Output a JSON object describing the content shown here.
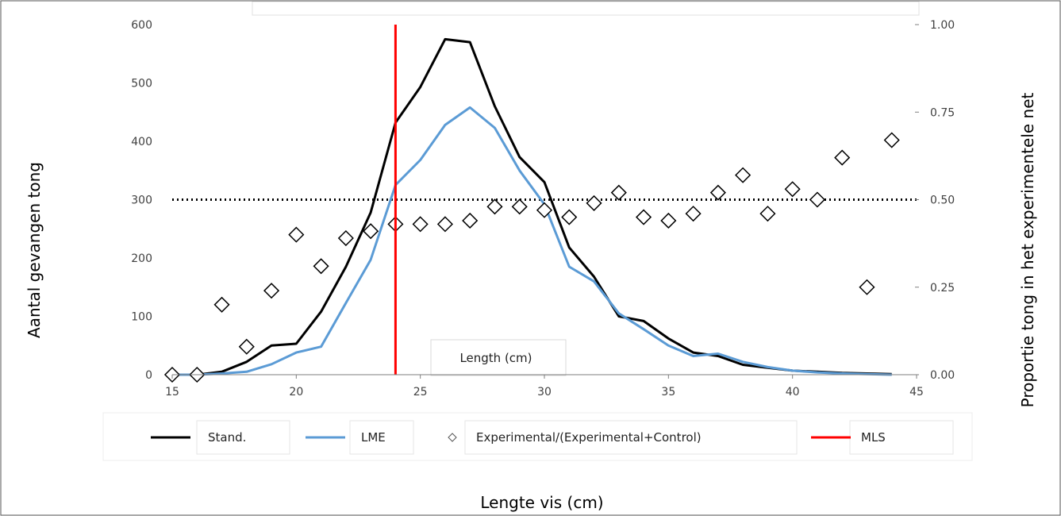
{
  "chart_data": {
    "type": "line",
    "xlabel": "Lengte vis (cm)",
    "ylabel": "Aantal gevangen tong",
    "y2label": "Proportie tong in het experimentele net",
    "inner_xlabel": "Length (cm)",
    "xlim": [
      15,
      45
    ],
    "ylim": [
      0,
      600
    ],
    "y2lim": [
      0,
      1
    ],
    "x_ticks": [
      "15",
      "20",
      "25",
      "30",
      "35",
      "40",
      "45"
    ],
    "y_ticks": [
      "0",
      "100",
      "200",
      "300",
      "400",
      "500",
      "600"
    ],
    "y2_ticks": [
      "0.00",
      "0.25",
      "0.50",
      "0.75",
      "1.00"
    ],
    "reference_line_y2": 0.5,
    "mls_x": 24,
    "legend_position": "bottom",
    "series": [
      {
        "name": "Stand.",
        "color": "#000000",
        "x": [
          15,
          16,
          17,
          18,
          19,
          20,
          21,
          22,
          23,
          24,
          25,
          26,
          27,
          28,
          29,
          30,
          31,
          32,
          33,
          34,
          35,
          36,
          37,
          38,
          39,
          40,
          41,
          42,
          43,
          44
        ],
        "values": [
          0,
          0,
          5,
          22,
          50,
          53,
          108,
          185,
          278,
          432,
          493,
          575,
          570,
          460,
          373,
          330,
          218,
          168,
          100,
          92,
          62,
          38,
          32,
          17,
          12,
          7,
          5,
          3,
          2,
          1
        ]
      },
      {
        "name": "LME",
        "color": "#5b9bd5",
        "x": [
          15,
          16,
          17,
          18,
          19,
          20,
          21,
          22,
          23,
          24,
          25,
          26,
          27,
          28,
          29,
          30,
          31,
          32,
          33,
          34,
          35,
          36,
          37,
          38,
          39,
          40,
          41,
          42,
          43,
          44
        ],
        "values": [
          0,
          0,
          2,
          5,
          18,
          38,
          48,
          123,
          197,
          325,
          368,
          428,
          458,
          423,
          350,
          292,
          185,
          160,
          105,
          78,
          50,
          32,
          36,
          22,
          13,
          7,
          4,
          2,
          1,
          0
        ]
      },
      {
        "name": "Experimental/(Experimental+Control)",
        "type": "scatter",
        "marker": "diamond",
        "axis": "right",
        "x": [
          15,
          16,
          17,
          18,
          19,
          20,
          21,
          22,
          23,
          24,
          25,
          26,
          27,
          28,
          29,
          30,
          31,
          32,
          33,
          34,
          35,
          36,
          37,
          38,
          39,
          40,
          41,
          42,
          43,
          44
        ],
        "values": [
          0.0,
          0.0,
          0.2,
          0.08,
          0.24,
          0.4,
          0.31,
          0.39,
          0.41,
          0.43,
          0.43,
          0.43,
          0.44,
          0.48,
          0.48,
          0.47,
          0.45,
          0.49,
          0.52,
          0.45,
          0.44,
          0.46,
          0.52,
          0.57,
          0.46,
          0.53,
          0.5,
          0.62,
          0.25,
          0.67
        ]
      },
      {
        "name": "MLS",
        "color": "#ff0000",
        "type": "vline"
      }
    ]
  }
}
